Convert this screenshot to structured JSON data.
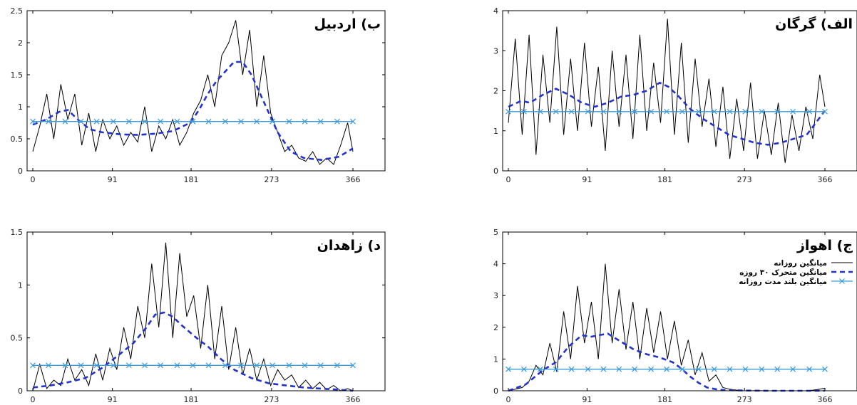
{
  "chart_data": [
    {
      "type": "line",
      "title": "ب) اردبیل",
      "x_ticks": [
        0,
        91,
        181,
        273,
        366
      ],
      "y_ticks": [
        "0",
        "0.5",
        "1",
        "1.5",
        "2",
        "2.5"
      ],
      "xlim": [
        0,
        366
      ],
      "ylim": [
        0,
        2.5
      ],
      "series": [
        {
          "key": "daily",
          "style": "solid",
          "color": "#000000",
          "x": [
            0,
            8,
            16,
            24,
            32,
            40,
            48,
            56,
            64,
            72,
            80,
            88,
            96,
            104,
            112,
            120,
            128,
            136,
            144,
            152,
            160,
            168,
            176,
            184,
            192,
            200,
            208,
            216,
            224,
            232,
            240,
            248,
            256,
            264,
            272,
            280,
            288,
            296,
            304,
            312,
            320,
            328,
            336,
            344,
            352,
            360,
            366
          ],
          "y": [
            0.3,
            0.7,
            1.2,
            0.5,
            1.35,
            0.8,
            1.2,
            0.4,
            0.9,
            0.3,
            0.8,
            0.5,
            0.7,
            0.4,
            0.6,
            0.45,
            1.0,
            0.3,
            0.7,
            0.5,
            0.8,
            0.4,
            0.6,
            0.9,
            1.1,
            1.5,
            1.0,
            1.8,
            2.0,
            2.35,
            1.5,
            2.2,
            1.0,
            1.8,
            0.9,
            0.6,
            0.3,
            0.4,
            0.2,
            0.15,
            0.3,
            0.1,
            0.2,
            0.1,
            0.4,
            0.75,
            0.3
          ]
        },
        {
          "key": "ma30",
          "style": "dashed",
          "color": "#2233cc",
          "x": [
            0,
            15,
            30,
            40,
            50,
            65,
            80,
            100,
            120,
            140,
            160,
            180,
            190,
            200,
            210,
            220,
            230,
            240,
            250,
            260,
            270,
            280,
            295,
            310,
            330,
            350,
            366
          ],
          "y": [
            0.72,
            0.8,
            0.92,
            0.95,
            0.82,
            0.65,
            0.6,
            0.57,
            0.56,
            0.58,
            0.62,
            0.75,
            0.95,
            1.2,
            1.4,
            1.55,
            1.7,
            1.7,
            1.5,
            1.2,
            0.9,
            0.6,
            0.3,
            0.2,
            0.17,
            0.22,
            0.35
          ]
        },
        {
          "key": "long_term",
          "style": "cross",
          "color": "#3a9ad9",
          "x": [
            0,
            18,
            37,
            55,
            73,
            92,
            110,
            128,
            146,
            165,
            183,
            201,
            220,
            238,
            256,
            274,
            293,
            311,
            329,
            348,
            366
          ],
          "y": [
            0.77,
            0.77,
            0.77,
            0.77,
            0.77,
            0.77,
            0.77,
            0.77,
            0.77,
            0.77,
            0.77,
            0.77,
            0.77,
            0.77,
            0.77,
            0.77,
            0.77,
            0.77,
            0.77,
            0.77,
            0.77
          ]
        }
      ]
    },
    {
      "type": "line",
      "title": "الف) گرگان",
      "x_ticks": [
        0,
        91,
        181,
        273,
        366
      ],
      "y_ticks": [
        "0",
        "1",
        "2",
        "3",
        "4"
      ],
      "xlim": [
        0,
        366
      ],
      "ylim": [
        0,
        4
      ],
      "series": [
        {
          "key": "daily",
          "style": "solid",
          "color": "#000000",
          "x": [
            0,
            8,
            16,
            24,
            32,
            40,
            48,
            56,
            64,
            72,
            80,
            88,
            96,
            104,
            112,
            120,
            128,
            136,
            144,
            152,
            160,
            168,
            176,
            184,
            192,
            200,
            208,
            216,
            224,
            232,
            240,
            248,
            256,
            264,
            272,
            280,
            288,
            296,
            304,
            312,
            320,
            328,
            336,
            344,
            352,
            360,
            366
          ],
          "y": [
            1.2,
            3.3,
            0.9,
            3.4,
            0.4,
            2.9,
            1.2,
            3.6,
            0.9,
            2.8,
            1.0,
            3.2,
            1.1,
            2.6,
            0.5,
            3.0,
            1.1,
            2.9,
            0.8,
            3.4,
            1.0,
            2.7,
            1.2,
            3.8,
            0.9,
            3.2,
            0.7,
            2.8,
            1.1,
            2.3,
            0.6,
            2.1,
            0.3,
            1.8,
            0.5,
            2.2,
            0.3,
            1.5,
            0.4,
            1.7,
            0.2,
            1.4,
            0.5,
            1.6,
            0.8,
            2.4,
            1.6
          ]
        },
        {
          "key": "ma30",
          "style": "dashed",
          "color": "#2233cc",
          "x": [
            0,
            15,
            25,
            40,
            55,
            70,
            85,
            100,
            115,
            130,
            145,
            160,
            175,
            185,
            195,
            210,
            225,
            240,
            255,
            270,
            285,
            300,
            315,
            330,
            345,
            366
          ],
          "y": [
            1.6,
            1.75,
            1.7,
            1.9,
            2.05,
            1.9,
            1.7,
            1.6,
            1.7,
            1.85,
            1.9,
            2.0,
            2.2,
            2.1,
            1.9,
            1.55,
            1.3,
            1.1,
            0.9,
            0.8,
            0.7,
            0.65,
            0.7,
            0.8,
            0.9,
            1.5
          ]
        },
        {
          "key": "long_term",
          "style": "cross",
          "color": "#3a9ad9",
          "x": [
            0,
            18,
            37,
            55,
            73,
            92,
            110,
            128,
            146,
            165,
            183,
            201,
            220,
            238,
            256,
            274,
            293,
            311,
            329,
            348,
            366
          ],
          "y": [
            1.48,
            1.48,
            1.48,
            1.48,
            1.48,
            1.48,
            1.48,
            1.48,
            1.48,
            1.48,
            1.48,
            1.48,
            1.48,
            1.48,
            1.48,
            1.48,
            1.48,
            1.48,
            1.48,
            1.48,
            1.48
          ]
        }
      ]
    },
    {
      "type": "line",
      "title": "د) زاهدان",
      "x_ticks": [
        0,
        91,
        181,
        273,
        366
      ],
      "y_ticks": [
        "0",
        "0.5",
        "1",
        "1.5"
      ],
      "xlim": [
        0,
        366
      ],
      "ylim": [
        0,
        1.5
      ],
      "series": [
        {
          "key": "daily",
          "style": "solid",
          "color": "#000000",
          "x": [
            0,
            8,
            16,
            24,
            32,
            40,
            48,
            56,
            64,
            72,
            80,
            88,
            96,
            104,
            112,
            120,
            128,
            136,
            144,
            152,
            160,
            168,
            176,
            184,
            192,
            200,
            208,
            216,
            224,
            232,
            240,
            248,
            256,
            264,
            272,
            280,
            288,
            296,
            304,
            312,
            320,
            328,
            336,
            344,
            352,
            360,
            366
          ],
          "y": [
            0.0,
            0.25,
            0.02,
            0.1,
            0.05,
            0.3,
            0.1,
            0.2,
            0.05,
            0.35,
            0.1,
            0.4,
            0.2,
            0.6,
            0.3,
            0.8,
            0.5,
            1.2,
            0.6,
            1.4,
            0.5,
            1.3,
            0.7,
            0.9,
            0.4,
            1.0,
            0.3,
            0.8,
            0.2,
            0.6,
            0.15,
            0.4,
            0.1,
            0.3,
            0.05,
            0.2,
            0.1,
            0.15,
            0.03,
            0.1,
            0.02,
            0.08,
            0.01,
            0.05,
            0.0,
            0.02,
            0.0
          ]
        },
        {
          "key": "ma30",
          "style": "dashed",
          "color": "#2233cc",
          "x": [
            0,
            20,
            40,
            60,
            80,
            100,
            115,
            130,
            140,
            150,
            160,
            170,
            180,
            190,
            200,
            215,
            230,
            250,
            270,
            290,
            310,
            330,
            350,
            366
          ],
          "y": [
            0.03,
            0.05,
            0.08,
            0.12,
            0.22,
            0.35,
            0.45,
            0.6,
            0.72,
            0.74,
            0.7,
            0.62,
            0.55,
            0.48,
            0.42,
            0.3,
            0.2,
            0.12,
            0.07,
            0.05,
            0.03,
            0.02,
            0.01,
            0.0
          ]
        },
        {
          "key": "long_term",
          "style": "cross",
          "color": "#3a9ad9",
          "x": [
            0,
            18,
            37,
            55,
            73,
            92,
            110,
            128,
            146,
            165,
            183,
            201,
            220,
            238,
            256,
            274,
            293,
            311,
            329,
            348,
            366
          ],
          "y": [
            0.24,
            0.24,
            0.24,
            0.24,
            0.24,
            0.24,
            0.24,
            0.24,
            0.24,
            0.24,
            0.24,
            0.24,
            0.24,
            0.24,
            0.24,
            0.24,
            0.24,
            0.24,
            0.24,
            0.24,
            0.24
          ]
        }
      ]
    },
    {
      "type": "line",
      "title": "ج) اهواز",
      "x_ticks": [
        0,
        91,
        181,
        273,
        366
      ],
      "y_ticks": [
        "0",
        "1",
        "2",
        "3",
        "4",
        "5"
      ],
      "xlim": [
        0,
        366
      ],
      "ylim": [
        0,
        5
      ],
      "legend": {
        "placement": "top-right",
        "entries": [
          {
            "label": "میانگین روزانه",
            "series": "daily"
          },
          {
            "label": "میانگین متحرک  ۳۰ روزه",
            "series": "ma30"
          },
          {
            "label": "میانگین بلند مدت روزانه",
            "series": "long_term"
          }
        ]
      },
      "series": [
        {
          "key": "daily",
          "style": "solid",
          "color": "#000000",
          "x": [
            0,
            8,
            16,
            24,
            32,
            40,
            48,
            56,
            64,
            72,
            80,
            88,
            96,
            104,
            112,
            120,
            128,
            136,
            144,
            152,
            160,
            168,
            176,
            184,
            192,
            200,
            208,
            216,
            224,
            232,
            240,
            248,
            256,
            264,
            272,
            280,
            288,
            296,
            304,
            312,
            320,
            328,
            336,
            344,
            352,
            360,
            366
          ],
          "y": [
            0.0,
            0.05,
            0.1,
            0.3,
            0.8,
            0.5,
            1.5,
            0.6,
            2.5,
            1.0,
            3.3,
            1.5,
            2.8,
            1.0,
            4.0,
            1.5,
            3.2,
            1.3,
            2.8,
            1.0,
            2.6,
            1.2,
            2.5,
            1.0,
            2.2,
            0.8,
            1.6,
            0.5,
            1.2,
            0.3,
            0.5,
            0.1,
            0.05,
            0.02,
            0.0,
            0.0,
            0.01,
            0.0,
            0.0,
            0.0,
            0.0,
            0.0,
            0.0,
            0.0,
            0.02,
            0.05,
            0.08
          ]
        },
        {
          "key": "ma30",
          "style": "dashed",
          "color": "#2233cc",
          "x": [
            0,
            20,
            40,
            55,
            70,
            85,
            95,
            105,
            115,
            130,
            145,
            160,
            175,
            190,
            200,
            210,
            220,
            230,
            240,
            250,
            270,
            300,
            330,
            366
          ],
          "y": [
            0.0,
            0.2,
            0.65,
            0.9,
            1.4,
            1.75,
            1.7,
            1.75,
            1.8,
            1.55,
            1.3,
            1.15,
            1.05,
            0.9,
            0.7,
            0.45,
            0.25,
            0.1,
            0.05,
            0.02,
            0.01,
            0.0,
            0.0,
            0.0
          ]
        },
        {
          "key": "long_term",
          "style": "cross",
          "color": "#3a9ad9",
          "x": [
            0,
            18,
            37,
            55,
            73,
            92,
            110,
            128,
            146,
            165,
            183,
            201,
            220,
            238,
            256,
            274,
            293,
            311,
            329,
            348,
            366
          ],
          "y": [
            0.68,
            0.68,
            0.68,
            0.68,
            0.68,
            0.68,
            0.68,
            0.68,
            0.68,
            0.68,
            0.68,
            0.68,
            0.68,
            0.68,
            0.68,
            0.68,
            0.68,
            0.68,
            0.68,
            0.68,
            0.68
          ]
        }
      ]
    }
  ]
}
